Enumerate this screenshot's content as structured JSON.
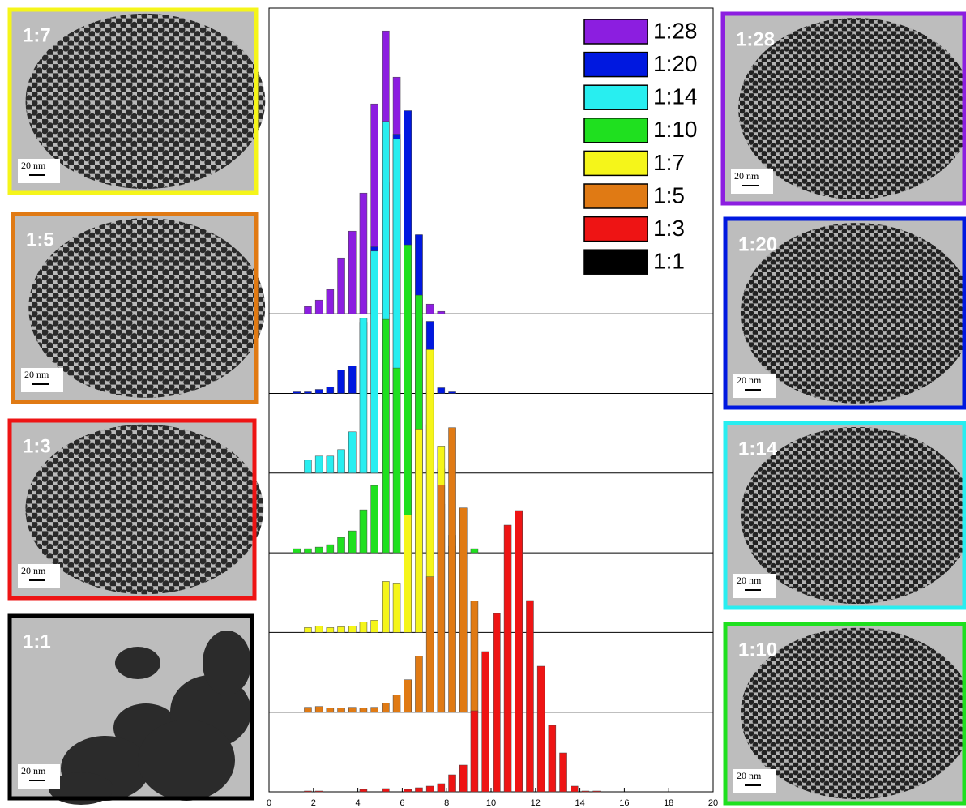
{
  "chart_data": {
    "type": "bar",
    "x": [
      1.25,
      1.75,
      2.25,
      2.75,
      3.25,
      3.75,
      4.25,
      4.75,
      5.25,
      5.75,
      6.25,
      6.75,
      7.25,
      7.75,
      8.25,
      8.75,
      9.25,
      9.75,
      10.25,
      10.75,
      11.25,
      11.75,
      12.25,
      12.75,
      13.25,
      13.75,
      14.25,
      14.75
    ],
    "series": [
      {
        "name": "1:28",
        "color": "#8c1ee0",
        "values": [
          0,
          9,
          17,
          30,
          69,
          102,
          149,
          259,
          349,
          292,
          220,
          97,
          12,
          3,
          0,
          0,
          0,
          0,
          0,
          0,
          0,
          0,
          0,
          0,
          0,
          0,
          0,
          0
        ]
      },
      {
        "name": "1:20",
        "color": "#0018e0",
        "values": [
          2,
          2,
          5,
          8,
          29,
          34,
          88,
          181,
          260,
          320,
          349,
          196,
          89,
          7,
          2,
          0,
          0,
          0,
          0,
          0,
          0,
          0,
          0,
          0,
          0,
          0,
          0,
          0
        ]
      },
      {
        "name": "1:14",
        "color": "#28eef0",
        "values": [
          0,
          16,
          21,
          21,
          29,
          51,
          191,
          274,
          434,
          412,
          272,
          192,
          60,
          5,
          0,
          0,
          0,
          0,
          0,
          0,
          0,
          0,
          0,
          0,
          0,
          0,
          0,
          0
        ]
      },
      {
        "name": "1:10",
        "color": "#1fe01f",
        "values": [
          5,
          5,
          7,
          10,
          19,
          27,
          53,
          83,
          288,
          228,
          380,
          318,
          198,
          60,
          8,
          0,
          5,
          0,
          0,
          0,
          0,
          0,
          0,
          0,
          0,
          0,
          0,
          0
        ]
      },
      {
        "name": "1:7",
        "color": "#f5f51a",
        "values": [
          0,
          6,
          8,
          6,
          7,
          8,
          13,
          15,
          63,
          61,
          145,
          251,
          349,
          230,
          120,
          40,
          0,
          0,
          0,
          0,
          0,
          0,
          0,
          0,
          0,
          0,
          0,
          0
        ]
      },
      {
        "name": "1:5",
        "color": "#e07a14",
        "values": [
          0,
          6,
          7,
          5,
          5,
          6,
          5,
          6,
          11,
          21,
          40,
          69,
          167,
          280,
          351,
          252,
          137,
          0,
          0,
          0,
          0,
          0,
          0,
          0,
          0,
          0,
          0,
          0
        ]
      },
      {
        "name": "1:3",
        "color": "#ee1414",
        "values": [
          0,
          1,
          1,
          0,
          0,
          0,
          3,
          0,
          4,
          0,
          3,
          5,
          7,
          10,
          21,
          33,
          100,
          173,
          220,
          329,
          347,
          236,
          155,
          82,
          48,
          7,
          1,
          1
        ]
      },
      {
        "name": "1:1",
        "color": "#000000",
        "values": [
          0,
          0,
          0,
          0,
          0,
          0,
          0,
          0,
          0,
          0,
          0,
          0,
          0,
          0,
          0,
          0,
          0,
          0,
          0,
          0,
          0,
          0,
          0,
          0,
          0,
          0,
          0,
          0
        ]
      }
    ],
    "xlim": [
      0,
      20
    ],
    "xticks": [
      0,
      2,
      4,
      6,
      8,
      10,
      12,
      14,
      16,
      18,
      20
    ]
  },
  "images": [
    {
      "label": "1:7",
      "scale_bar": "20 nm"
    },
    {
      "label": "1:5",
      "scale_bar": "20 nm"
    },
    {
      "label": "1:3",
      "scale_bar": "20 nm"
    },
    {
      "label": "1:1",
      "scale_bar": "20 nm"
    },
    {
      "label": "1:28",
      "scale_bar": "20 nm"
    },
    {
      "label": "1:20",
      "scale_bar": "20 nm"
    },
    {
      "label": "1:14",
      "scale_bar": "20 nm"
    },
    {
      "label": "1:10",
      "scale_bar": "20 nm"
    }
  ]
}
